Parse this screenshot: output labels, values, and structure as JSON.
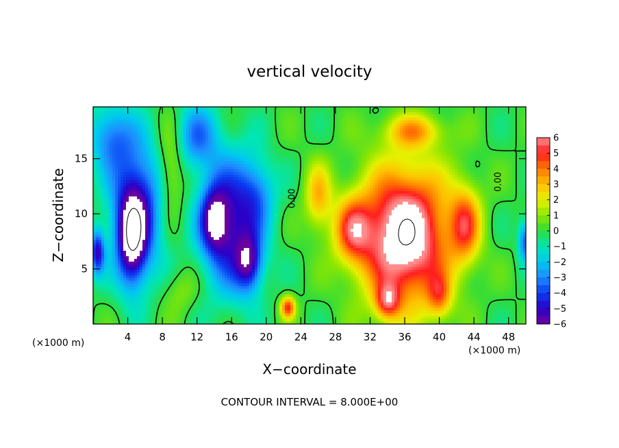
{
  "chart_data": {
    "type": "heatmap",
    "title": "vertical velocity",
    "xlabel": "X−coordinate",
    "ylabel": "Z−coordinate",
    "x_unit_left": "(×1000 m)",
    "x_unit_right": "(×1000 m)",
    "footer": "CONTOUR INTERVAL = 8.000E+00",
    "xlim": [
      0,
      50
    ],
    "ylim": [
      0,
      19.7
    ],
    "x_ticks": [
      4,
      8,
      12,
      16,
      20,
      24,
      28,
      32,
      36,
      40,
      44,
      48
    ],
    "x_tick_labels": [
      "4",
      "8",
      "12",
      "16",
      "20",
      "24",
      "28",
      "32",
      "36",
      "40",
      "44",
      "48"
    ],
    "y_ticks": [
      5,
      10,
      15
    ],
    "y_tick_labels": [
      "5",
      "10",
      "15"
    ],
    "colorbar": {
      "min": -6,
      "max": 6,
      "ticks": [
        6,
        5,
        4,
        3,
        2,
        1,
        0,
        -1,
        -2,
        -3,
        -4,
        -5,
        -6
      ],
      "tick_labels": [
        "6",
        "5",
        "4",
        "3",
        "2",
        "1",
        "0",
        "−1",
        "−2",
        "−3",
        "−4",
        "−5",
        "−6"
      ]
    },
    "contour_labels": [
      {
        "text": "0.00",
        "x": 23.3,
        "y": 11.4
      },
      {
        "text": "0.00",
        "x": 47.1,
        "y": 12.9
      }
    ],
    "features": [
      {
        "x": 36,
        "y": 8,
        "sx": 5,
        "sy": 6,
        "amp": 8
      },
      {
        "x": 30,
        "y": 8.5,
        "sx": 2.2,
        "sy": 3,
        "amp": 4
      },
      {
        "x": 43,
        "y": 9,
        "sx": 1.8,
        "sy": 3.5,
        "amp": 4
      },
      {
        "x": 26,
        "y": 11.5,
        "sx": 1.5,
        "sy": 3,
        "amp": 3
      },
      {
        "x": 22.5,
        "y": 1.5,
        "sx": 0.8,
        "sy": 1,
        "amp": 5
      },
      {
        "x": 34,
        "y": 2,
        "sx": 1.4,
        "sy": 1.6,
        "amp": 4
      },
      {
        "x": 40,
        "y": 2.5,
        "sx": 1.4,
        "sy": 2,
        "amp": 3
      },
      {
        "x": 37,
        "y": 17.5,
        "sx": 3.5,
        "sy": 1.5,
        "amp": 3
      },
      {
        "x": 5,
        "y": 10.5,
        "sx": 3,
        "sy": 6,
        "amp": -5
      },
      {
        "x": 4.5,
        "y": 7.5,
        "sx": 1.6,
        "sy": 4,
        "amp": -5
      },
      {
        "x": 16,
        "y": 9,
        "sx": 3.5,
        "sy": 6,
        "amp": -5
      },
      {
        "x": 14,
        "y": 9.5,
        "sx": 1.6,
        "sy": 3,
        "amp": -4
      },
      {
        "x": 18,
        "y": 5.5,
        "sx": 1.5,
        "sy": 2.5,
        "amp": -4
      },
      {
        "x": 12,
        "y": 17,
        "sx": 2.5,
        "sy": 3,
        "amp": -3
      },
      {
        "x": 2,
        "y": 17,
        "sx": 2.5,
        "sy": 3,
        "amp": -3
      },
      {
        "x": 19,
        "y": 12,
        "sx": 2,
        "sy": 3,
        "amp": -2
      },
      {
        "x": 0.5,
        "y": 6.5,
        "sx": 0.8,
        "sy": 2,
        "amp": -5
      },
      {
        "x": 50,
        "y": 7.5,
        "sx": 0.8,
        "sy": 2,
        "amp": -4
      },
      {
        "x": 9,
        "y": 14,
        "sx": 1.5,
        "sy": 4,
        "amp": 2
      },
      {
        "x": 10,
        "y": 3,
        "sx": 2,
        "sy": 2,
        "amp": 1
      }
    ]
  }
}
